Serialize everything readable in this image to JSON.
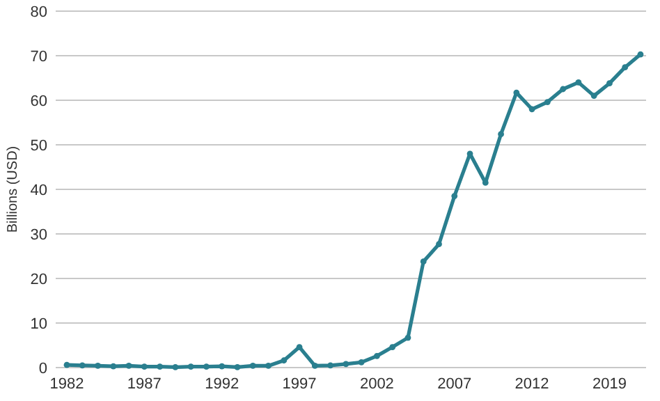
{
  "chart_data": {
    "type": "line",
    "ylabel": "Billions (USD)",
    "categories": [
      "1982",
      null,
      null,
      null,
      null,
      "1987",
      null,
      null,
      null,
      null,
      "1992",
      null,
      null,
      null,
      null,
      "1997",
      null,
      null,
      null,
      null,
      "2002",
      null,
      null,
      null,
      null,
      "2007",
      null,
      null,
      null,
      null,
      "2012",
      null,
      null,
      null,
      null,
      "2019",
      null,
      null
    ],
    "series": [
      {
        "color": "#2a7f8f",
        "values": [
          0.6,
          0.5,
          0.4,
          0.3,
          0.4,
          0.2,
          0.2,
          0.1,
          0.2,
          0.2,
          0.3,
          0.1,
          0.4,
          0.4,
          1.6,
          4.6,
          0.4,
          0.5,
          0.8,
          1.2,
          2.6,
          4.6,
          6.7,
          23.8,
          27.7,
          38.5,
          48.0,
          41.5,
          52.4,
          61.7,
          58.0,
          59.6,
          62.5,
          64.0,
          61.0,
          63.8,
          67.4,
          70.3
        ]
      }
    ],
    "ylim": [
      0,
      80
    ],
    "yticks": [
      0,
      10,
      20,
      30,
      40,
      50,
      60,
      70,
      80
    ],
    "grid": "y",
    "marker": "circle",
    "line_style": "solid"
  }
}
